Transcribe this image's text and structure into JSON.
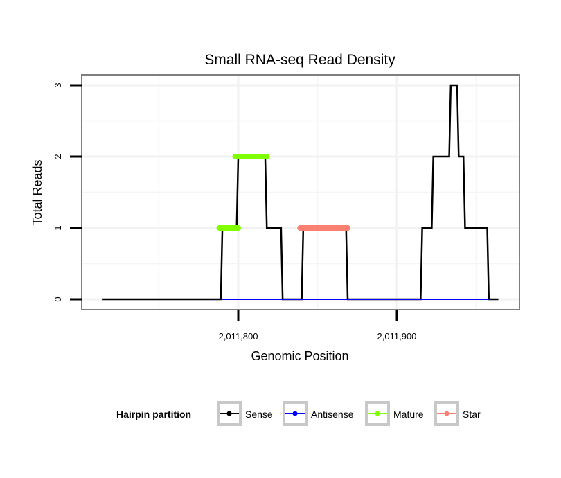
{
  "chart_data": {
    "type": "line",
    "title": "Small RNA-seq Read Density",
    "xlabel": "Genomic Position",
    "ylabel": "Total Reads",
    "xlim": [
      2011701.3,
      2011977.3
    ],
    "ylim": [
      -0.146,
      3.146
    ],
    "x_ticks": [
      {
        "value": 2011800,
        "label": "2,011,800"
      },
      {
        "value": 2011900,
        "label": "2,011,900"
      }
    ],
    "x_minor": [
      2011750,
      2011850,
      2011950
    ],
    "y_ticks": [
      {
        "value": 0,
        "label": "0"
      },
      {
        "value": 1,
        "label": "1"
      },
      {
        "value": 2,
        "label": "2"
      },
      {
        "value": 3,
        "label": "3"
      }
    ],
    "y_minor": [
      0.5,
      1.5,
      2.5
    ],
    "grid": true,
    "legend_title": "Hairpin partition",
    "legend_position": "bottom",
    "series": [
      {
        "name": "Sense",
        "color": "#000000",
        "kind": "line",
        "x": [
          2011714,
          2011789,
          2011790,
          2011799,
          2011800,
          2011817,
          2011818,
          2011827,
          2011828,
          2011840,
          2011841,
          2011868,
          2011869,
          2011915,
          2011916,
          2011922,
          2011923,
          2011933,
          2011934,
          2011938,
          2011939,
          2011942,
          2011943,
          2011957,
          2011958,
          2011964
        ],
        "y": [
          0,
          0,
          1,
          1,
          2,
          2,
          1,
          1,
          0,
          0,
          1,
          1,
          0,
          0,
          1,
          1,
          2,
          2,
          3,
          3,
          2,
          2,
          1,
          1,
          0,
          0
        ]
      },
      {
        "name": "Antisense",
        "color": "#0000ff",
        "kind": "line",
        "x": [
          2011790,
          2011958
        ],
        "y": [
          0,
          0
        ]
      },
      {
        "name": "Mature",
        "color": "#7fff00",
        "kind": "segments",
        "segments": [
          {
            "x0": 2011788,
            "x1": 2011800,
            "y": 1
          },
          {
            "x0": 2011798,
            "x1": 2011818,
            "y": 2
          }
        ]
      },
      {
        "name": "Star",
        "color": "#fa8072",
        "kind": "segments",
        "segments": [
          {
            "x0": 2011839,
            "x1": 2011869,
            "y": 1
          }
        ]
      }
    ]
  }
}
